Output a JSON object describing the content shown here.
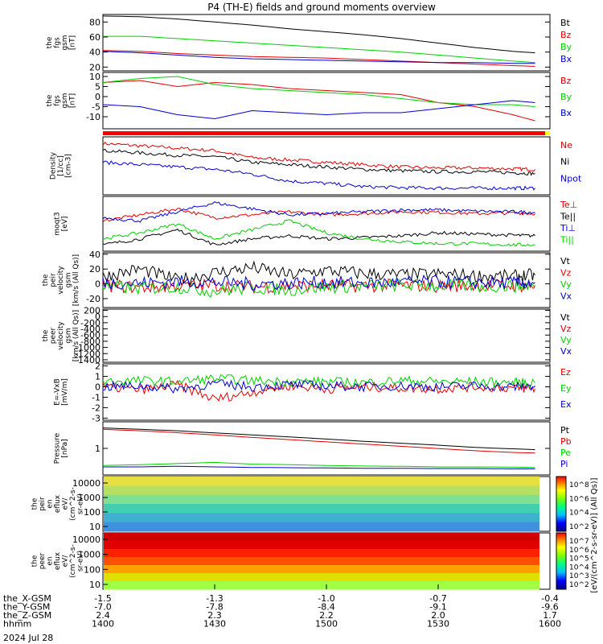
{
  "title": "P4 (TH-E) fields and ground moments overview",
  "colors": {
    "black": "#000000",
    "red": "#e00000",
    "green": "#00d000",
    "blue": "#0000d0"
  },
  "chart_data": [
    {
      "type": "line",
      "panel": "fgs_gsm_btot",
      "ylabel_lines": [
        "the",
        "fgs",
        "gsm",
        "[nT]"
      ],
      "yticks": [
        "80",
        "60",
        "40",
        "20"
      ],
      "ylim": [
        15,
        90
      ],
      "series": [
        {
          "name": "Bt",
          "color": "black",
          "x": [
            1400,
            1410,
            1420,
            1430,
            1440,
            1450,
            1500,
            1510,
            1520,
            1530,
            1540,
            1550,
            1556
          ],
          "values": [
            88,
            87,
            84,
            80,
            76,
            71,
            67,
            63,
            58,
            52,
            46,
            41,
            39
          ]
        },
        {
          "name": "Bz",
          "color": "red",
          "x": [
            1400,
            1410,
            1420,
            1430,
            1440,
            1450,
            1500,
            1510,
            1520,
            1530,
            1540,
            1550,
            1556
          ],
          "values": [
            42,
            41,
            38,
            36,
            34,
            33,
            32,
            30,
            28,
            26,
            24,
            22,
            21
          ]
        },
        {
          "name": "By",
          "color": "green",
          "x": [
            1400,
            1410,
            1420,
            1430,
            1440,
            1450,
            1500,
            1510,
            1520,
            1530,
            1540,
            1550,
            1556
          ],
          "values": [
            61,
            61,
            58,
            55,
            52,
            49,
            46,
            43,
            40,
            36,
            32,
            28,
            26
          ]
        },
        {
          "name": "Bx",
          "color": "blue",
          "x": [
            1400,
            1410,
            1420,
            1430,
            1440,
            1450,
            1500,
            1510,
            1520,
            1530,
            1540,
            1550,
            1556
          ],
          "values": [
            41,
            39,
            36,
            33,
            31,
            30,
            29,
            28,
            27,
            26,
            26,
            25,
            25
          ]
        }
      ]
    },
    {
      "type": "line",
      "panel": "fgs_gsm_bxyz",
      "ylabel_lines": [
        "the",
        "fgs",
        "gsm",
        "[nT]"
      ],
      "yticks": [
        "10",
        "5",
        "0",
        "-5",
        "-10"
      ],
      "ylim": [
        -16,
        12
      ],
      "series": [
        {
          "name": "Bz",
          "color": "red",
          "x": [
            1400,
            1410,
            1420,
            1430,
            1440,
            1450,
            1500,
            1510,
            1520,
            1530,
            1540,
            1550,
            1556
          ],
          "values": [
            7,
            8,
            5,
            7,
            6,
            4,
            3,
            2,
            1,
            -3,
            -5,
            -9,
            -12
          ]
        },
        {
          "name": "By",
          "color": "green",
          "x": [
            1400,
            1410,
            1420,
            1430,
            1440,
            1450,
            1500,
            1510,
            1520,
            1530,
            1540,
            1550,
            1556
          ],
          "values": [
            7,
            9,
            10,
            6,
            4,
            3,
            2,
            1,
            -1,
            -3,
            -4,
            -4,
            -5
          ]
        },
        {
          "name": "Bx",
          "color": "blue",
          "x": [
            1400,
            1410,
            1420,
            1430,
            1440,
            1450,
            1500,
            1510,
            1520,
            1530,
            1540,
            1550,
            1556
          ],
          "values": [
            -4,
            -5,
            -9,
            -11,
            -7,
            -8,
            -9,
            -8,
            -8,
            -6,
            -4,
            -2,
            -3
          ]
        }
      ]
    },
    {
      "type": "line",
      "panel": "density",
      "ylabel_lines": [
        "Density",
        "[1/cc]",
        "[cm-3]"
      ],
      "yticks": [],
      "series": [
        {
          "name": "Ne",
          "color": "red",
          "x": [
            1400,
            1410,
            1420,
            1430,
            1440,
            1450,
            1500,
            1510,
            1520,
            1530,
            1540,
            1550,
            1556
          ],
          "values": [
            1.0,
            0.95,
            0.9,
            0.85,
            0.7,
            0.65,
            0.6,
            0.55,
            0.5,
            0.48,
            0.48,
            0.46,
            0.45
          ]
        },
        {
          "name": "Ni",
          "color": "black",
          "x": [
            1400,
            1410,
            1420,
            1430,
            1440,
            1450,
            1500,
            1510,
            1520,
            1530,
            1540,
            1550,
            1556
          ],
          "values": [
            0.85,
            0.8,
            0.75,
            0.72,
            0.6,
            0.55,
            0.5,
            0.45,
            0.42,
            0.4,
            0.4,
            0.38,
            0.36
          ]
        },
        {
          "name": "Npot",
          "color": "blue",
          "x": [
            1400,
            1410,
            1420,
            1430,
            1440,
            1450,
            1500,
            1510,
            1520,
            1530,
            1540,
            1550,
            1556
          ],
          "values": [
            0.6,
            0.55,
            0.5,
            0.45,
            0.35,
            0.2,
            0.15,
            0.08,
            0.06,
            0.05,
            0.05,
            0.05,
            0.05
          ]
        }
      ]
    },
    {
      "type": "line",
      "panel": "temperature",
      "ylabel_lines": [
        "moqt3",
        "[eV]"
      ],
      "yticks": [],
      "series": [
        {
          "name": "Te⊥",
          "color": "red",
          "x": [
            1400,
            1410,
            1420,
            1430,
            1440,
            1450,
            1500,
            1510,
            1520,
            1530,
            1540,
            1550,
            1556
          ],
          "values": [
            0.6,
            0.7,
            0.8,
            0.65,
            0.7,
            0.75,
            0.7,
            0.72,
            0.75,
            0.74,
            0.72,
            0.73,
            0.72
          ]
        },
        {
          "name": "Te||",
          "color": "black",
          "x": [
            1400,
            1410,
            1420,
            1430,
            1440,
            1450,
            1500,
            1510,
            1520,
            1530,
            1540,
            1550,
            1556
          ],
          "values": [
            0.2,
            0.3,
            0.45,
            0.2,
            0.3,
            0.35,
            0.3,
            0.32,
            0.35,
            0.4,
            0.38,
            0.36,
            0.35
          ]
        },
        {
          "name": "Ti⊥",
          "color": "blue",
          "x": [
            1400,
            1410,
            1420,
            1430,
            1440,
            1450,
            1500,
            1510,
            1520,
            1530,
            1540,
            1550,
            1556
          ],
          "values": [
            0.65,
            0.6,
            0.75,
            0.9,
            0.8,
            0.7,
            0.72,
            0.75,
            0.78,
            0.78,
            0.76,
            0.75,
            0.74
          ]
        },
        {
          "name": "Ti||",
          "color": "green",
          "x": [
            1400,
            1410,
            1420,
            1430,
            1440,
            1450,
            1500,
            1510,
            1520,
            1530,
            1540,
            1550,
            1556
          ],
          "values": [
            0.3,
            0.4,
            0.55,
            0.3,
            0.45,
            0.6,
            0.4,
            0.3,
            0.25,
            0.22,
            0.22,
            0.2,
            0.2
          ]
        }
      ]
    },
    {
      "type": "line",
      "panel": "peir_velocity",
      "ylabel_lines": [
        "the",
        "peir",
        "velocity",
        "gsm",
        "[km/s (All Qs)]"
      ],
      "yticks": [
        "40",
        "20",
        "0",
        "-20"
      ],
      "ylim": [
        -32,
        42
      ],
      "series": [
        {
          "name": "Vt",
          "color": "black",
          "x": [
            1400,
            1410,
            1420,
            1430,
            1440,
            1450,
            1500,
            1510,
            1520,
            1530,
            1540,
            1550,
            1556
          ],
          "values": [
            10,
            20,
            5,
            15,
            22,
            12,
            18,
            14,
            12,
            13,
            11,
            10,
            12
          ]
        },
        {
          "name": "Vz",
          "color": "red",
          "x": [
            1400,
            1410,
            1420,
            1430,
            1440,
            1450,
            1500,
            1510,
            1520,
            1530,
            1540,
            1550,
            1556
          ],
          "values": [
            -2,
            -5,
            -3,
            -2,
            -4,
            -3,
            -2,
            -3,
            -2,
            -3,
            -2,
            -2,
            -3
          ]
        },
        {
          "name": "Vy",
          "color": "green",
          "x": [
            1400,
            1410,
            1420,
            1430,
            1440,
            1450,
            1500,
            1510,
            1520,
            1530,
            1540,
            1550,
            1556
          ],
          "values": [
            -3,
            -6,
            -4,
            -10,
            -5,
            -8,
            -4,
            -3,
            -2,
            -2,
            -3,
            -3,
            -2
          ]
        },
        {
          "name": "Vx",
          "color": "blue",
          "x": [
            1400,
            1410,
            1420,
            1430,
            1440,
            1450,
            1500,
            1510,
            1520,
            1530,
            1540,
            1550,
            1556
          ],
          "values": [
            2,
            1,
            3,
            2,
            0,
            1,
            2,
            1,
            2,
            3,
            2,
            1,
            2
          ]
        }
      ]
    },
    {
      "type": "line",
      "panel": "peer_velocity",
      "ylabel_lines": [
        "the",
        "peer",
        "velocity",
        "gsm",
        "[km/s (All Qs)]"
      ],
      "yticks": [
        "200",
        "0",
        "-200",
        "-400",
        "-600",
        "-800",
        "-1000",
        "-1200",
        "-1400"
      ],
      "ylim": [
        -1480,
        240
      ],
      "series": [
        {
          "name": "Vt",
          "color": "black",
          "x": [],
          "values": []
        },
        {
          "name": "Vz",
          "color": "red",
          "x": [],
          "values": []
        },
        {
          "name": "Vy",
          "color": "green",
          "x": [],
          "values": []
        },
        {
          "name": "Vx",
          "color": "blue",
          "x": [],
          "values": []
        }
      ]
    },
    {
      "type": "line",
      "panel": "e_vxb",
      "ylabel_lines": [
        "E=-VxB",
        "[mV/m]"
      ],
      "yticks": [
        "2",
        "1",
        "0",
        "-1",
        "-2",
        "-3"
      ],
      "ylim": [
        -3.2,
        2.2
      ],
      "series": [
        {
          "name": "Ez",
          "color": "red",
          "x": [
            1400,
            1410,
            1420,
            1430,
            1440,
            1450,
            1500,
            1510,
            1520,
            1530,
            1540,
            1550,
            1556
          ],
          "values": [
            0,
            -0.3,
            0.2,
            -1.2,
            -0.5,
            0.1,
            -0.2,
            0,
            -0.1,
            -0.2,
            0,
            -0.1,
            -0.2
          ]
        },
        {
          "name": "Ey",
          "color": "green",
          "x": [
            1400,
            1410,
            1420,
            1430,
            1440,
            1450,
            1500,
            1510,
            1520,
            1530,
            1540,
            1550,
            1556
          ],
          "values": [
            0.5,
            0.6,
            0.5,
            0.8,
            0.6,
            0.5,
            0.5,
            0.4,
            0.6,
            0.5,
            0.5,
            0.4,
            0.4
          ]
        },
        {
          "name": "Ex",
          "color": "blue",
          "x": [
            1400,
            1410,
            1420,
            1430,
            1440,
            1450,
            1500,
            1510,
            1520,
            1530,
            1540,
            1550,
            1556
          ],
          "values": [
            0,
            0.1,
            -0.2,
            0.3,
            0,
            0.2,
            0.1,
            0,
            0.1,
            0,
            0.1,
            0,
            0.1
          ]
        }
      ]
    },
    {
      "type": "line",
      "panel": "pressure",
      "ylabel_lines": [
        "Pressure",
        "[nPa]"
      ],
      "yticks": [
        "1"
      ],
      "series": [
        {
          "name": "Pt",
          "color": "black",
          "x": [
            1400,
            1410,
            1420,
            1430,
            1440,
            1450,
            1500,
            1510,
            1520,
            1530,
            1540,
            1550,
            1556
          ],
          "values": [
            1.6,
            1.55,
            1.5,
            1.42,
            1.35,
            1.28,
            1.2,
            1.12,
            1.05,
            0.98,
            0.9,
            0.85,
            0.82
          ]
        },
        {
          "name": "Pb",
          "color": "red",
          "x": [
            1400,
            1410,
            1420,
            1430,
            1440,
            1450,
            1500,
            1510,
            1520,
            1530,
            1540,
            1550,
            1556
          ],
          "values": [
            1.55,
            1.5,
            1.43,
            1.35,
            1.26,
            1.18,
            1.1,
            1.02,
            0.94,
            0.86,
            0.78,
            0.72,
            0.7
          ]
        },
        {
          "name": "Pe",
          "color": "green",
          "x": [
            1400,
            1410,
            1420,
            1430,
            1440,
            1450,
            1500,
            1510,
            1520,
            1530,
            1540,
            1550,
            1556
          ],
          "values": [
            0.25,
            0.28,
            0.32,
            0.36,
            0.3,
            0.28,
            0.25,
            0.23,
            0.22,
            0.2,
            0.2,
            0.19,
            0.18
          ]
        },
        {
          "name": "Pi",
          "color": "blue",
          "x": [
            1400,
            1410,
            1420,
            1430,
            1440,
            1450,
            1500,
            1510,
            1520,
            1530,
            1540,
            1550,
            1556
          ],
          "values": [
            0.2,
            0.2,
            0.22,
            0.2,
            0.18,
            0.17,
            0.16,
            0.15,
            0.15,
            0.14,
            0.14,
            0.13,
            0.13
          ]
        }
      ]
    },
    {
      "type": "heatmap",
      "panel": "peir_en_eflux",
      "ylabel_lines": [
        "the",
        "peir",
        "en",
        "eflux",
        "eV/",
        "(cm^2-s-",
        "sr-eV)"
      ],
      "yticks": [
        "10000",
        "1000",
        "100",
        "10"
      ],
      "colorbar_ticks": [
        "10^8",
        "10^6",
        "10^4",
        "10^2"
      ]
    },
    {
      "type": "heatmap",
      "panel": "peer_en_eflux",
      "ylabel_lines": [
        "the",
        "peer",
        "en",
        "eflux",
        "eV/",
        "(cm^2-s-",
        "sr-eV)"
      ],
      "yticks": [
        "10000",
        "1000",
        "100",
        "10"
      ],
      "colorbar_ticks": [
        "10^7",
        "10^6",
        "10^5",
        "10^4",
        "10^3",
        "10^2"
      ],
      "colorbar_label": "[eV/(cm^2-s-sr-eV)] (All Qs)]"
    }
  ],
  "x_axis": {
    "rows": [
      {
        "label": "the_X-GSM",
        "values": [
          "-1.5",
          "-1.3",
          "-1.0",
          "-0.7",
          "-0.4"
        ]
      },
      {
        "label": "the_Y-GSM",
        "values": [
          "-7.0",
          "-7.8",
          "-8.4",
          "-9.1",
          "-9.6"
        ]
      },
      {
        "label": "the_Z-GSM",
        "values": [
          "2.4",
          "2.3",
          "2.2",
          "2.0",
          "1.7"
        ]
      },
      {
        "label": "hhmm",
        "values": [
          "1400",
          "1430",
          "1500",
          "1530",
          "1600"
        ]
      }
    ],
    "date": "2024 Jul 28"
  }
}
